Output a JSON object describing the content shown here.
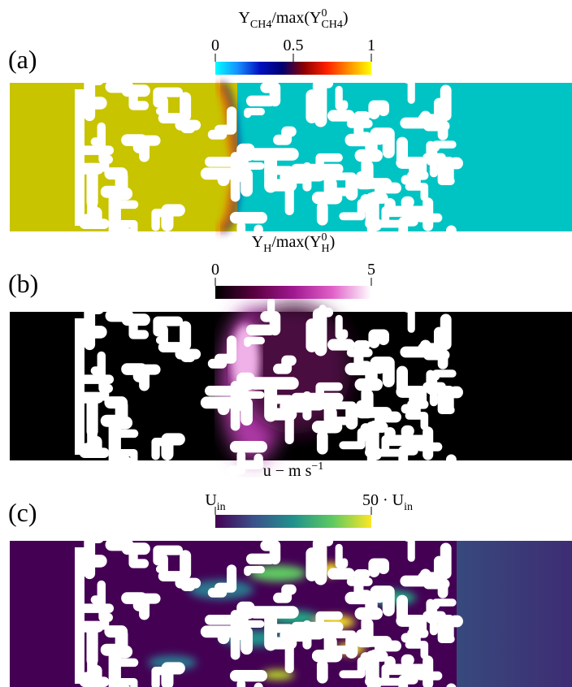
{
  "panels": [
    {
      "label": "(a)",
      "colorbar": {
        "title": [
          {
            "text": "Y"
          },
          {
            "text": "CH4",
            "style": "sub"
          },
          {
            "text": "/max(Y"
          },
          {
            "text": "0",
            "style": "sup"
          },
          {
            "text": "CH4",
            "style": "subunder"
          },
          {
            "text": ")"
          }
        ],
        "lim": [
          0,
          1
        ],
        "ticks": [
          0,
          0.5,
          1
        ],
        "colors": [
          "#00ffff",
          "#1890ff",
          "#0010c0",
          "#000070",
          "#900000",
          "#ff2000",
          "#ff9000",
          "#ffff00"
        ]
      }
    },
    {
      "label": "(b)",
      "colorbar": {
        "title": [
          {
            "text": "Y"
          },
          {
            "text": "H",
            "style": "sub"
          },
          {
            "text": "/max(Y"
          },
          {
            "text": "0",
            "style": "sup"
          },
          {
            "text": "H",
            "style": "subunder"
          },
          {
            "text": ")"
          }
        ],
        "lim": [
          0,
          5
        ],
        "ticks": [
          0,
          5
        ],
        "colors": [
          "#000000",
          "#5a0040",
          "#a01890",
          "#e060c8",
          "#ffffff"
        ]
      }
    },
    {
      "label": "(c)",
      "colorbar": {
        "title": [
          {
            "text": "u − m s"
          },
          {
            "text": "−1",
            "style": "sup"
          }
        ],
        "lim": [
          1,
          50
        ],
        "ticks": [
          {
            "value": 1,
            "label": [
              {
                "text": "U"
              },
              {
                "text": "in",
                "style": "sub"
              }
            ]
          },
          {
            "value": 50,
            "label": [
              {
                "text": "50 · U"
              },
              {
                "text": "in",
                "style": "sub"
              }
            ]
          }
        ],
        "colors": [
          "#440154",
          "#3b528b",
          "#21918c",
          "#5ec962",
          "#fde725"
        ]
      }
    }
  ]
}
